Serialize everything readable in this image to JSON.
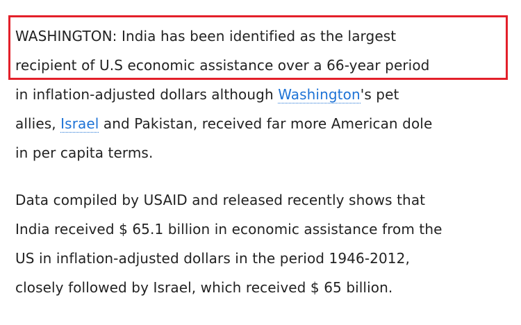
{
  "article": {
    "paragraphs": [
      {
        "lines": [
          [
            {
              "text": "WASHINGTON: India has been identified as the largest"
            }
          ],
          [
            {
              "text": "recipient of U.S economic assistance over a 66-year period"
            }
          ],
          [
            {
              "text": "in inflation-adjusted dollars although "
            },
            {
              "text": "Washington",
              "link": true
            },
            {
              "text": "'s pet"
            }
          ],
          [
            {
              "text": "allies, "
            },
            {
              "text": "Israel",
              "link": true
            },
            {
              "text": " and Pakistan, received far more American dole"
            }
          ],
          [
            {
              "text": "in per capita terms."
            }
          ]
        ]
      },
      {
        "lines": [
          [
            {
              "text": "Data compiled by USAID and released recently shows that"
            }
          ],
          [
            {
              "text": "India received $ 65.1 billion in economic assistance from the"
            }
          ],
          [
            {
              "text": "US in inflation-adjusted dollars in the period 1946-2012,"
            }
          ],
          [
            {
              "text": "closely followed by Israel, which received $ 65 billion."
            }
          ]
        ]
      }
    ],
    "highlight_lines": 2
  }
}
